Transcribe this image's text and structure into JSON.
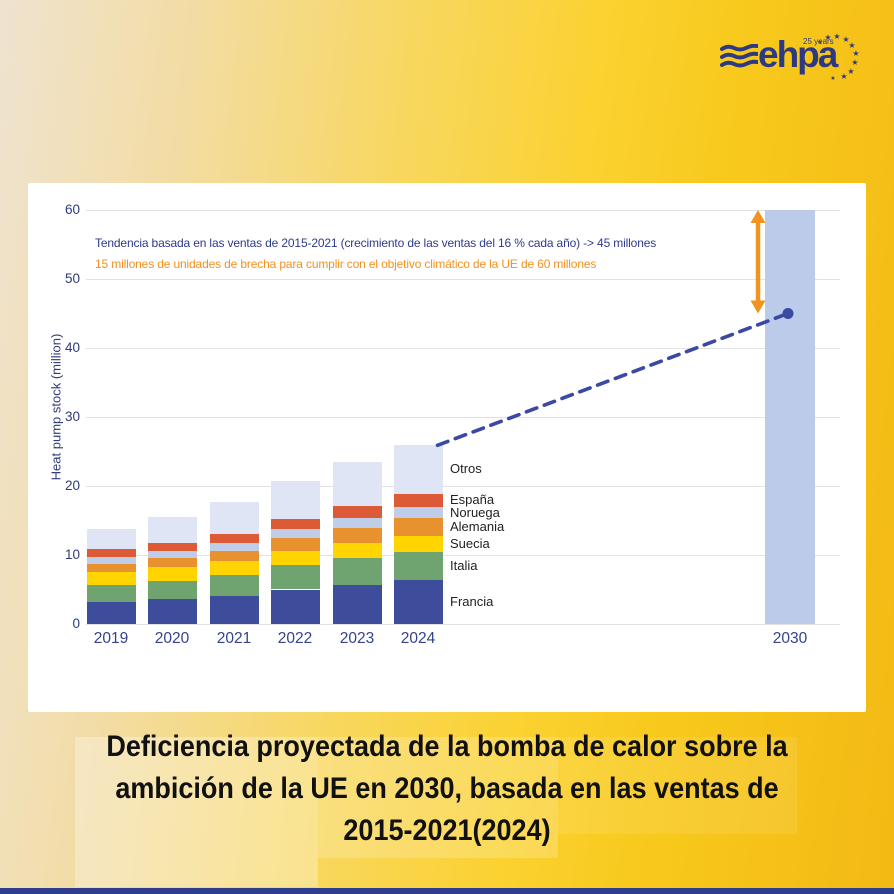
{
  "page": {
    "background_colors": [
      "#EFE3D0",
      "#F8D75E",
      "#FBD232",
      "#F3B914"
    ],
    "bottom_bar_color": "#2F3D8F"
  },
  "logo": {
    "brand": "ehpa",
    "tagline": "25 years",
    "color": "#2D3A82"
  },
  "annotation": {
    "line1": "Tendencia basada en las ventas de 2015-2021 (crecimiento de las ventas del 16 % cada año) -> 45 millones",
    "line2": "15 millones de unidades de brecha para cumplir con el objetivo climático de la UE de 60 millones",
    "line1_color": "#2E3A8C",
    "line2_color": "#F0921E"
  },
  "title": {
    "line1": "Deficiencia proyectada de la bomba de calor sobre la",
    "line2": "ambición de la UE en 2030, basada en las ventas de",
    "line3": "2015-2021(2024)"
  },
  "chart_data": {
    "type": "bar",
    "stacked": true,
    "ylabel": "Heat pump stock (million)",
    "xlabel": "",
    "ylim": [
      0,
      60
    ],
    "yticks": [
      0,
      10,
      20,
      30,
      40,
      50,
      60
    ],
    "grid": true,
    "categories": [
      "2019",
      "2020",
      "2021",
      "2022",
      "2023",
      "2024"
    ],
    "series": [
      {
        "name": "Francia",
        "color": "#3E4C9C",
        "values": [
          3.2,
          3.6,
          4.1,
          5.0,
          5.7,
          6.4
        ]
      },
      {
        "name": "Italia",
        "color": "#6FA370",
        "values": [
          2.5,
          2.7,
          3.0,
          3.5,
          3.9,
          4.1
        ]
      },
      {
        "name": "Suecia",
        "color": "#FFD400",
        "values": [
          1.8,
          1.9,
          2.0,
          2.1,
          2.2,
          2.3
        ]
      },
      {
        "name": "Alemania",
        "color": "#E8922F",
        "values": [
          1.2,
          1.3,
          1.5,
          1.8,
          2.1,
          2.5
        ]
      },
      {
        "name": "Noruega",
        "color": "#C0CDE8",
        "values": [
          1.0,
          1.1,
          1.2,
          1.3,
          1.5,
          1.6
        ]
      },
      {
        "name": "España",
        "color": "#DC5A36",
        "values": [
          1.1,
          1.2,
          1.3,
          1.5,
          1.7,
          2.0
        ]
      },
      {
        "name": "Otros",
        "color": "#DFE5F4",
        "values": [
          3.0,
          3.7,
          4.6,
          5.5,
          6.4,
          7.0
        ]
      }
    ],
    "totals": [
      13.8,
      15.5,
      17.7,
      20.7,
      23.5,
      25.9
    ],
    "series_labels_position": "right-of-last-bar",
    "legend_order_top_to_bottom": [
      "Otros",
      "España",
      "Noruega",
      "Alemania",
      "Suecia",
      "Italia",
      "Francia"
    ],
    "projection": {
      "category": "2030",
      "target_value": 60,
      "trend_value": 45,
      "gap_millions": 15,
      "bar_color": "#BCCBE9",
      "trend_line_color": "#3A49A3",
      "gap_arrow_color": "#F0941F"
    }
  }
}
